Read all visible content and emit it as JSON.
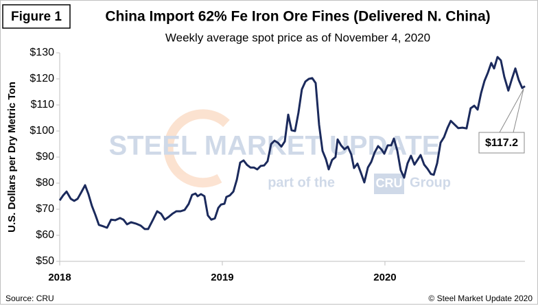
{
  "figure_label": "Figure 1",
  "chart_data": {
    "type": "line",
    "title": "China Import 62% Fe Iron Ore Fines (Delivered N. China)",
    "subtitle": "Weekly average spot price as of November 4, 2020",
    "y_label": "U.S. Dollars per Dry Metric Ton",
    "color": "#1b2a5c",
    "xlim": [
      2018,
      2020.861
    ],
    "xticks": [
      2018,
      2019,
      2020
    ],
    "ylim": [
      50,
      130
    ],
    "yticks": [
      {
        "value": 50,
        "label": "$50"
      },
      {
        "value": 60,
        "label": "$60"
      },
      {
        "value": 70,
        "label": "$70"
      },
      {
        "value": 80,
        "label": "$80"
      },
      {
        "value": 90,
        "label": "$90"
      },
      {
        "value": 100,
        "label": "$100"
      },
      {
        "value": 110,
        "label": "$110"
      },
      {
        "value": 120,
        "label": "$120"
      },
      {
        "value": 130,
        "label": "$130"
      }
    ],
    "grid": false,
    "x": [
      2018.0,
      2018.021,
      2018.042,
      2018.068,
      2018.089,
      2018.11,
      2018.131,
      2018.156,
      2018.177,
      2018.198,
      2018.219,
      2018.241,
      2018.27,
      2018.291,
      2018.316,
      2018.342,
      2018.371,
      2018.392,
      2018.414,
      2018.439,
      2018.468,
      2018.498,
      2018.523,
      2018.544,
      2018.574,
      2018.599,
      2018.624,
      2018.646,
      2018.671,
      2018.692,
      2018.717,
      2018.743,
      2018.768,
      2018.793,
      2018.814,
      2018.835,
      2018.848,
      2018.869,
      2018.89,
      2018.911,
      2018.932,
      2018.954,
      2018.975,
      2018.992,
      2019.013,
      2019.025,
      2019.046,
      2019.068,
      2019.089,
      2019.11,
      2019.131,
      2019.152,
      2019.173,
      2019.194,
      2019.215,
      2019.236,
      2019.257,
      2019.278,
      2019.3,
      2019.321,
      2019.342,
      2019.363,
      2019.384,
      2019.405,
      2019.426,
      2019.447,
      2019.468,
      2019.489,
      2019.511,
      2019.532,
      2019.553,
      2019.574,
      2019.595,
      2019.616,
      2019.637,
      2019.654,
      2019.675,
      2019.696,
      2019.709,
      2019.73,
      2019.751,
      2019.772,
      2019.793,
      2019.81,
      2019.831,
      2019.852,
      2019.873,
      2019.895,
      2019.916,
      2019.937,
      2019.958,
      2019.979,
      2019.996,
      2020.017,
      2020.038,
      2020.055,
      2020.076,
      2020.097,
      2020.118,
      2020.139,
      2020.16,
      2020.181,
      2020.203,
      2020.219,
      2020.241,
      2020.262,
      2020.283,
      2020.3,
      2020.321,
      2020.342,
      2020.363,
      2020.384,
      2020.405,
      2020.426,
      2020.451,
      2020.477,
      2020.502,
      2020.527,
      2020.549,
      2020.57,
      2020.591,
      2020.612,
      2020.633,
      2020.654,
      2020.671,
      2020.692,
      2020.713,
      2020.734,
      2020.759,
      2020.781,
      2020.802,
      2020.823,
      2020.844,
      2020.861
    ],
    "values": [
      73.4,
      75.3,
      76.8,
      74,
      73.2,
      74,
      76.3,
      79.2,
      75.8,
      71.3,
      67.9,
      64,
      63.4,
      62.9,
      66,
      65.8,
      66.6,
      66,
      64.2,
      65,
      64.5,
      63.7,
      62.4,
      62.4,
      66,
      69.2,
      68.2,
      66,
      67.1,
      68.2,
      69.2,
      69.2,
      69.7,
      72,
      75.5,
      76,
      75,
      75.8,
      75,
      67.6,
      66,
      66.5,
      70.5,
      71.8,
      72.1,
      74.7,
      75.3,
      76.8,
      81.3,
      87.9,
      88.7,
      87,
      86,
      86,
      85.3,
      86.6,
      86.8,
      88.4,
      95,
      96.3,
      95.5,
      94,
      96,
      106.3,
      100.3,
      100,
      107,
      116,
      119,
      120,
      120.3,
      118.4,
      102.4,
      92.4,
      89.2,
      85.3,
      88.9,
      90,
      96.8,
      94.5,
      93,
      94,
      91,
      85.8,
      87.5,
      84,
      80.3,
      86,
      88.2,
      91.8,
      94.2,
      92.9,
      91.3,
      94.5,
      94.5,
      97.1,
      92.4,
      85,
      82.1,
      87.6,
      90.5,
      87.1,
      89.2,
      90.8,
      87.1,
      85.5,
      83.5,
      83.2,
      87.6,
      95.5,
      97.6,
      101.1,
      103.9,
      102.6,
      101.1,
      101.3,
      101,
      108.7,
      109.7,
      108.2,
      114.5,
      119.2,
      122.4,
      126.1,
      124,
      128.4,
      127.1,
      120.8,
      115.5,
      120,
      124,
      119.5,
      116.5,
      117.2
    ],
    "annotation": {
      "label": "$117.2",
      "value": 117.2
    }
  },
  "watermark": {
    "brand": "STEEL MARKET UPDATE",
    "tagline_start": "part of the",
    "tagline_mark": "CRU",
    "tagline_end": "Group"
  },
  "source": "Source: CRU",
  "copyright": "© Steel Market Update 2020"
}
